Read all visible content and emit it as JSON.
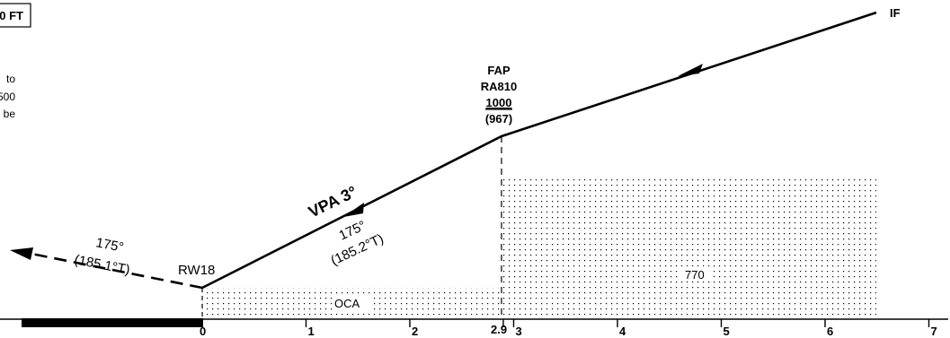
{
  "header": {
    "box_label": "0 FT",
    "note_lines": [
      "to",
      "500",
      "be"
    ]
  },
  "fixes": {
    "if": {
      "label": "IF"
    },
    "fap": {
      "label": "FAP",
      "name": "RA810",
      "altitude": "1000",
      "height": "(967)",
      "distance_nm": 2.9,
      "distance_label": "2.9"
    }
  },
  "runway": {
    "label": "RW18"
  },
  "approach": {
    "vpa_label": "VPA 3°",
    "course_mag": "175°",
    "course_true": "(185.2°T)"
  },
  "missed_approach": {
    "course_mag": "175°",
    "course_true": "(185.1°T)"
  },
  "obstacle_areas": {
    "oca_label": "OCA",
    "high_area_label": "770"
  },
  "distance_axis": {
    "ticks": [
      {
        "value": 0,
        "label": "0"
      },
      {
        "value": 1,
        "label": "1"
      },
      {
        "value": 2,
        "label": "2"
      },
      {
        "value": 3,
        "label": "3"
      },
      {
        "value": 4,
        "label": "4"
      },
      {
        "value": 5,
        "label": "5"
      },
      {
        "value": 6,
        "label": "6"
      },
      {
        "value": 7,
        "label": "7"
      }
    ]
  }
}
